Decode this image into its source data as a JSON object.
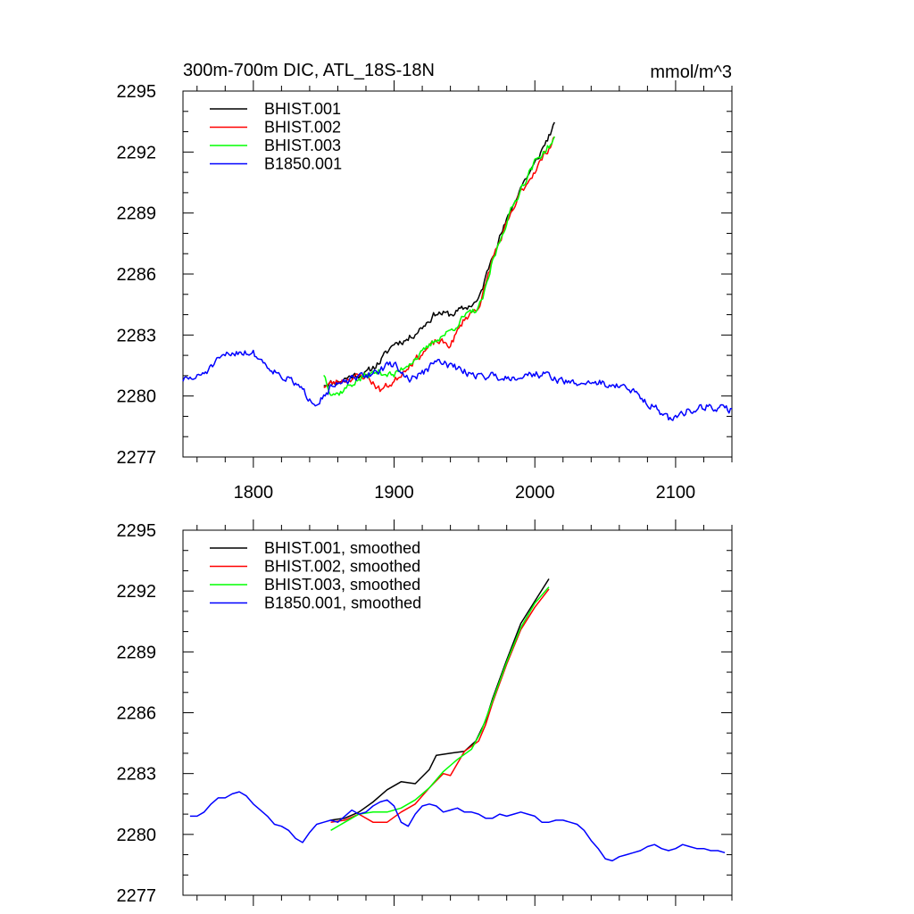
{
  "figure": {
    "title": "300m-700m DIC, ATL_18S-18N",
    "units": "mmol/m^3"
  },
  "chart_data": [
    {
      "type": "line",
      "panel": "top",
      "title": "300m-700m DIC, ATL_18S-18N",
      "units_label": "mmol/m^3",
      "xlabel": "",
      "ylabel": "",
      "xlim": [
        1750,
        2140
      ],
      "ylim": [
        2277,
        2295
      ],
      "x_ticks": [
        1800,
        1900,
        2000,
        2100
      ],
      "x_tick_labels": [
        "1800",
        "1900",
        "2000",
        "2100"
      ],
      "y_ticks": [
        2277,
        2280,
        2283,
        2286,
        2289,
        2292,
        2295
      ],
      "y_tick_labels": [
        "2277",
        "2280",
        "2283",
        "2286",
        "2289",
        "2292",
        "2295"
      ],
      "legend_position": "top-left",
      "grid": false,
      "series": [
        {
          "name": "BHIST.001",
          "color": "#000000",
          "noise": 0.28,
          "seed": 11,
          "x": [
            1850,
            1860,
            1870,
            1880,
            1890,
            1900,
            1910,
            1920,
            1930,
            1940,
            1950,
            1960,
            1965,
            1970,
            1980,
            1990,
            2000,
            2010,
            2014
          ],
          "y": [
            2280.6,
            2280.7,
            2281.0,
            2281.1,
            2281.7,
            2282.6,
            2282.8,
            2283.4,
            2284.1,
            2284.0,
            2284.3,
            2284.7,
            2285.8,
            2287.0,
            2288.6,
            2290.3,
            2291.4,
            2292.8,
            2293.3
          ]
        },
        {
          "name": "BHIST.002",
          "color": "#ff0000",
          "noise": 0.28,
          "seed": 23,
          "x": [
            1850,
            1860,
            1870,
            1880,
            1890,
            1900,
            1910,
            1920,
            1930,
            1940,
            1950,
            1960,
            1965,
            1970,
            1980,
            1990,
            2000,
            2010,
            2014
          ],
          "y": [
            2280.5,
            2280.7,
            2280.9,
            2281.0,
            2280.3,
            2280.7,
            2281.5,
            2282.1,
            2282.7,
            2282.5,
            2283.8,
            2284.4,
            2285.4,
            2286.8,
            2288.4,
            2290.0,
            2291.1,
            2292.2,
            2292.8
          ]
        },
        {
          "name": "BHIST.003",
          "color": "#00ff00",
          "noise": 0.28,
          "seed": 37,
          "x": [
            1850,
            1855,
            1860,
            1870,
            1880,
            1890,
            1900,
            1910,
            1920,
            1930,
            1940,
            1950,
            1960,
            1965,
            1970,
            1980,
            1990,
            2000,
            2010,
            2014
          ],
          "y": [
            2281.1,
            2280.2,
            2280.1,
            2280.6,
            2281.0,
            2281.2,
            2281.0,
            2281.6,
            2282.1,
            2282.8,
            2283.2,
            2283.9,
            2284.3,
            2285.2,
            2286.6,
            2288.6,
            2290.2,
            2291.5,
            2292.3,
            2292.6
          ]
        },
        {
          "name": "B1850.001",
          "color": "#0000ff",
          "noise": 0.3,
          "seed": 51,
          "x": [
            1750,
            1760,
            1770,
            1780,
            1790,
            1800,
            1810,
            1820,
            1830,
            1838,
            1845,
            1855,
            1870,
            1880,
            1890,
            1900,
            1910,
            1920,
            1930,
            1940,
            1950,
            1960,
            1970,
            1980,
            1990,
            2000,
            2010,
            2020,
            2030,
            2040,
            2050,
            2060,
            2070,
            2080,
            2090,
            2095,
            2100,
            2110,
            2120,
            2130,
            2140
          ],
          "y": [
            2280.8,
            2280.9,
            2281.4,
            2282.0,
            2282.2,
            2282.1,
            2281.5,
            2281.0,
            2280.6,
            2280.0,
            2279.7,
            2280.4,
            2280.8,
            2281.0,
            2281.3,
            2281.6,
            2280.8,
            2281.1,
            2281.7,
            2281.5,
            2281.2,
            2281.0,
            2281.0,
            2280.9,
            2281.0,
            2281.1,
            2281.0,
            2280.7,
            2280.6,
            2280.7,
            2280.6,
            2280.5,
            2280.2,
            2279.7,
            2279.2,
            2278.8,
            2279.0,
            2279.3,
            2279.5,
            2279.4,
            2279.3
          ]
        }
      ]
    },
    {
      "type": "line",
      "panel": "bottom",
      "xlabel": "",
      "ylabel": "",
      "xlim": [
        1750,
        2140
      ],
      "ylim": [
        2277,
        2295
      ],
      "x_ticks": [
        1800,
        1900,
        2000,
        2100
      ],
      "y_ticks": [
        2277,
        2280,
        2283,
        2286,
        2289,
        2292,
        2295
      ],
      "y_tick_labels": [
        "2277",
        "2280",
        "2283",
        "2286",
        "2289",
        "2292",
        "2295"
      ],
      "legend_position": "top-left",
      "grid": false,
      "series": [
        {
          "name": "BHIST.001, smoothed",
          "color": "#000000",
          "noise": 0,
          "seed": 0,
          "x": [
            1855,
            1865,
            1875,
            1885,
            1895,
            1905,
            1915,
            1925,
            1930,
            1940,
            1950,
            1958,
            1965,
            1970,
            1980,
            1990,
            2000,
            2010
          ],
          "y": [
            2280.7,
            2280.8,
            2281.1,
            2281.6,
            2282.2,
            2282.6,
            2282.5,
            2283.2,
            2283.9,
            2284.0,
            2284.1,
            2284.6,
            2285.6,
            2286.7,
            2288.6,
            2290.4,
            2291.5,
            2292.6
          ]
        },
        {
          "name": "BHIST.002, smoothed",
          "color": "#ff0000",
          "noise": 0,
          "seed": 0,
          "x": [
            1855,
            1865,
            1875,
            1885,
            1895,
            1905,
            1915,
            1925,
            1935,
            1940,
            1950,
            1960,
            1965,
            1970,
            1980,
            1990,
            2000,
            2010
          ],
          "y": [
            2280.6,
            2280.7,
            2281.0,
            2280.6,
            2280.6,
            2281.1,
            2281.5,
            2282.3,
            2283.0,
            2282.9,
            2284.1,
            2284.6,
            2285.4,
            2286.5,
            2288.4,
            2290.1,
            2291.2,
            2292.1
          ]
        },
        {
          "name": "BHIST.003, smoothed",
          "color": "#00ff00",
          "noise": 0,
          "seed": 0,
          "x": [
            1855,
            1865,
            1875,
            1885,
            1895,
            1905,
            1915,
            1925,
            1935,
            1945,
            1955,
            1962,
            1970,
            1980,
            1990,
            2000,
            2010
          ],
          "y": [
            2280.2,
            2280.6,
            2281.0,
            2281.1,
            2281.1,
            2281.3,
            2281.7,
            2282.3,
            2283.1,
            2283.7,
            2284.2,
            2285.1,
            2286.6,
            2288.5,
            2290.2,
            2291.4,
            2292.2
          ]
        },
        {
          "name": "B1850.001, smoothed",
          "color": "#0000ff",
          "noise": 0,
          "seed": 0,
          "x": [
            1755,
            1760,
            1765,
            1770,
            1775,
            1780,
            1785,
            1790,
            1795,
            1800,
            1805,
            1810,
            1815,
            1820,
            1825,
            1830,
            1835,
            1840,
            1845,
            1850,
            1855,
            1860,
            1865,
            1870,
            1875,
            1880,
            1885,
            1890,
            1895,
            1900,
            1905,
            1910,
            1915,
            1920,
            1925,
            1930,
            1935,
            1940,
            1945,
            1950,
            1955,
            1960,
            1965,
            1970,
            1975,
            1980,
            1985,
            1990,
            1995,
            2000,
            2005,
            2010,
            2015,
            2020,
            2025,
            2030,
            2035,
            2040,
            2045,
            2050,
            2055,
            2060,
            2065,
            2070,
            2075,
            2080,
            2085,
            2090,
            2095,
            2100,
            2105,
            2110,
            2115,
            2120,
            2125,
            2130,
            2135
          ],
          "y": [
            2280.9,
            2280.9,
            2281.1,
            2281.5,
            2281.8,
            2281.8,
            2282.0,
            2282.1,
            2281.9,
            2281.5,
            2281.2,
            2280.9,
            2280.5,
            2280.4,
            2280.2,
            2279.8,
            2279.6,
            2280.1,
            2280.5,
            2280.6,
            2280.7,
            2280.6,
            2280.9,
            2281.2,
            2281.0,
            2281.1,
            2281.4,
            2281.6,
            2281.7,
            2281.4,
            2280.6,
            2280.4,
            2281.0,
            2281.4,
            2281.5,
            2281.4,
            2281.1,
            2281.2,
            2281.3,
            2281.1,
            2281.1,
            2281.0,
            2280.8,
            2280.8,
            2281.0,
            2280.9,
            2281.0,
            2281.1,
            2281.0,
            2280.9,
            2280.6,
            2280.6,
            2280.7,
            2280.7,
            2280.6,
            2280.5,
            2280.2,
            2279.7,
            2279.3,
            2278.8,
            2278.7,
            2278.9,
            2279.0,
            2279.1,
            2279.2,
            2279.4,
            2279.5,
            2279.3,
            2279.2,
            2279.3,
            2279.5,
            2279.4,
            2279.3,
            2279.3,
            2279.2,
            2279.2,
            2279.1
          ]
        }
      ]
    }
  ]
}
